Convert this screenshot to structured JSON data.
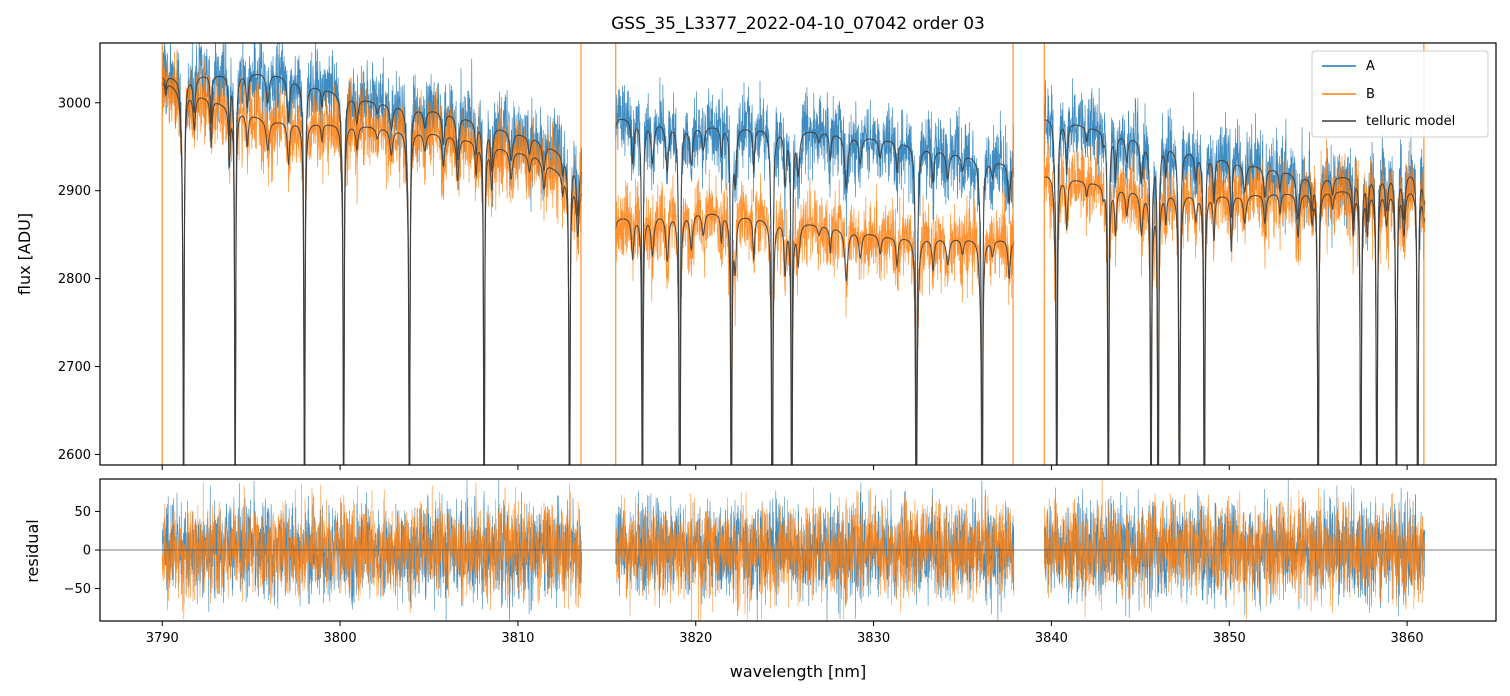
{
  "chart_data": [
    {
      "type": "line",
      "panel": "top",
      "title": "GSS_35_L3377_2022-04-10_07042  order 03",
      "xlabel": "",
      "ylabel": "flux [ADU]",
      "xlim": [
        3786.5,
        3865.0
      ],
      "ylim": [
        2588,
        3068
      ],
      "xticks": [
        3790,
        3800,
        3810,
        3820,
        3830,
        3840,
        3850,
        3860
      ],
      "yticks": [
        2600,
        2700,
        2800,
        2900,
        3000
      ],
      "ytick_labels": [
        "2600",
        "2700",
        "2800",
        "2900",
        "3000"
      ],
      "segments_nm": [
        [
          3790.0,
          3813.6
        ],
        [
          3815.5,
          3837.9
        ],
        [
          3839.6,
          3861.0
        ]
      ],
      "series": [
        {
          "name": "A",
          "color": "#1f77b4",
          "continuum_points": [
            [
              3790,
              3030
            ],
            [
              3796,
              3035
            ],
            [
              3801,
              3005
            ],
            [
              3806,
              2990
            ],
            [
              3811,
              2960
            ],
            [
              3813.6,
              2930
            ],
            [
              3815.5,
              2985
            ],
            [
              3820,
              2975
            ],
            [
              3826,
              2970
            ],
            [
              3831,
              2958
            ],
            [
              3837.9,
              2930
            ],
            [
              3839.6,
              2985
            ],
            [
              3845,
              2960
            ],
            [
              3850,
              2935
            ],
            [
              3855,
              2915
            ],
            [
              3861,
              2925
            ]
          ],
          "noise_sigma_adu": 22
        },
        {
          "name": "B",
          "color": "#ff7f0e",
          "continuum_points": [
            [
              3790,
              3025
            ],
            [
              3796,
              2980
            ],
            [
              3801,
              2975
            ],
            [
              3806,
              2965
            ],
            [
              3811,
              2940
            ],
            [
              3813.6,
              2905
            ],
            [
              3815.5,
              2870
            ],
            [
              3820,
              2878
            ],
            [
              3826,
              2865
            ],
            [
              3831,
              2848
            ],
            [
              3837.9,
              2845
            ],
            [
              3839.6,
              2920
            ],
            [
              3845,
              2900
            ],
            [
              3850,
              2895
            ],
            [
              3855,
              2900
            ],
            [
              3861,
              2905
            ]
          ],
          "noise_sigma_adu": 22
        },
        {
          "name": "telluric model",
          "color": "#3b3b3b",
          "follows": [
            "A",
            "B"
          ]
        }
      ],
      "deep_absorption_lines_nm": [
        3791.2,
        3794.1,
        3798.0,
        3800.2,
        3803.9,
        3808.1,
        3812.9,
        3817.0,
        3819.1,
        3822.0,
        3824.3,
        3825.4,
        3832.4,
        3836.1,
        3840.3,
        3843.2,
        3845.6,
        3846.0,
        3847.2,
        3848.6,
        3855.0,
        3857.4,
        3858.3,
        3859.4,
        3860.6
      ],
      "legend": {
        "position": "top-right",
        "entries": [
          "A",
          "B",
          "telluric model"
        ]
      }
    },
    {
      "type": "line",
      "panel": "bottom",
      "title": "",
      "xlabel": "wavelength [nm]",
      "ylabel": "residual",
      "xlim": [
        3786.5,
        3865.0
      ],
      "ylim": [
        -92,
        92
      ],
      "xticks": [
        3790,
        3800,
        3810,
        3820,
        3830,
        3840,
        3850,
        3860
      ],
      "xtick_labels": [
        "3790",
        "3800",
        "3810",
        "3820",
        "3830",
        "3840",
        "3850",
        "3860"
      ],
      "yticks": [
        -50,
        0,
        50
      ],
      "ytick_labels": [
        "−50",
        "0",
        "50"
      ],
      "zero_line": true,
      "series": [
        {
          "name": "A",
          "color": "#1f77b4",
          "noise_sigma": 30
        },
        {
          "name": "B",
          "color": "#ff7f0e",
          "noise_sigma": 30
        }
      ]
    }
  ]
}
